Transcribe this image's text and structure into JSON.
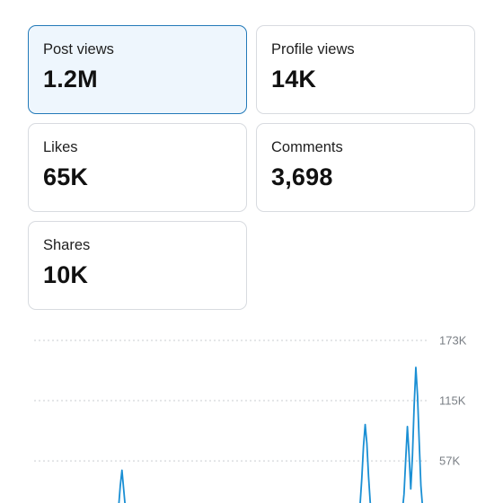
{
  "header_partial": "",
  "metrics": [
    {
      "label": "Post views",
      "value": "1.2M",
      "selected": true
    },
    {
      "label": "Profile views",
      "value": "14K",
      "selected": false
    },
    {
      "label": "Likes",
      "value": "65K",
      "selected": false
    },
    {
      "label": "Comments",
      "value": "3,698",
      "selected": false
    },
    {
      "label": "Shares",
      "value": "10K",
      "selected": false
    }
  ],
  "colors": {
    "accent": "#237ab9",
    "selected_bg": "#eef6fd",
    "card_border": "#d8dbe0",
    "line": "#1a8fd4",
    "grid": "#c9ccd1"
  },
  "chart_data": {
    "type": "line",
    "title": "",
    "xlabel": "",
    "ylabel": "",
    "y_ticks": [
      "173K",
      "115K",
      "57K"
    ],
    "y_tick_values": [
      173000,
      115000,
      57000
    ],
    "ylim": [
      0,
      173000
    ],
    "grid": true,
    "series": [
      {
        "values": [
          0,
          0,
          0,
          0,
          0,
          0,
          0,
          0,
          0,
          0,
          0,
          0,
          0,
          0,
          0,
          0,
          0,
          0,
          0,
          0,
          0,
          0,
          0,
          0,
          0,
          0,
          0,
          0,
          0,
          0,
          0,
          0,
          0,
          0,
          0,
          0,
          0,
          0,
          0,
          0,
          0,
          0,
          0,
          0,
          0,
          0,
          0,
          0,
          2000,
          5000,
          12000,
          33000,
          48000,
          30000,
          12000,
          4000,
          1000,
          0,
          0,
          0,
          0,
          0,
          0,
          0,
          0,
          0,
          0,
          0,
          0,
          0,
          0,
          0,
          0,
          0,
          0,
          0,
          0,
          0,
          0,
          0,
          0,
          0,
          0,
          0,
          0,
          0,
          0,
          0,
          0,
          0,
          0,
          0,
          0,
          0,
          0,
          0,
          0,
          0,
          0,
          0,
          0,
          0,
          0,
          0,
          0,
          0,
          0,
          0,
          0,
          0,
          0,
          0,
          0,
          0,
          0,
          0,
          0,
          0,
          0,
          0,
          0,
          0,
          0,
          0,
          0,
          0,
          0,
          0,
          0,
          0,
          0,
          0,
          0,
          0,
          0,
          0,
          0,
          0,
          0,
          0,
          0,
          0,
          0,
          0,
          0,
          0,
          0,
          0,
          0,
          0,
          0,
          0,
          0,
          0,
          0,
          0,
          0,
          0,
          0,
          0,
          0,
          0,
          0,
          0,
          0,
          0,
          0,
          0,
          0,
          0,
          0,
          0,
          0,
          0,
          0,
          0,
          0,
          0,
          0,
          0,
          0,
          0,
          0,
          0,
          0,
          0,
          0,
          0,
          0,
          0,
          0,
          0,
          5000,
          15000,
          40000,
          71000,
          92000,
          74000,
          42000,
          17000,
          6000,
          2000,
          0,
          0,
          0,
          0,
          0,
          0,
          0,
          0,
          0,
          0,
          0,
          0,
          0,
          0,
          0,
          0,
          8000,
          25000,
          58000,
          90000,
          63000,
          30000,
          62000,
          110000,
          147000,
          120000,
          75000,
          33000,
          12000,
          4000,
          0,
          0,
          0
        ]
      }
    ]
  }
}
